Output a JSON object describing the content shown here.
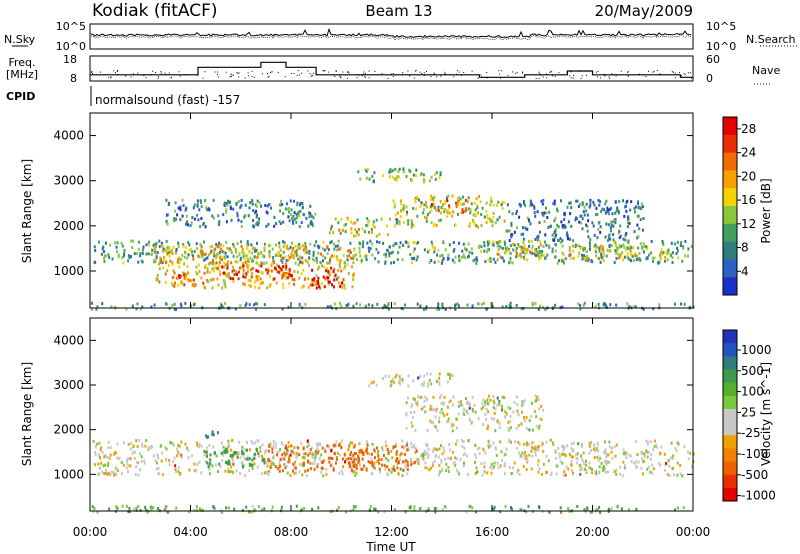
{
  "header": {
    "station": "Kodiak (fitACF)",
    "beam": "Beam 13",
    "date": "20/May/2009"
  },
  "noise_panel": {
    "left_label": "N.Sky",
    "left_ticks": [
      "10^5",
      "10^0"
    ],
    "right_ticks": [
      "10^5",
      "10^0"
    ],
    "right_label": "N.Search"
  },
  "freq_panel": {
    "left_label": "Freq.",
    "left_unit": "[MHz]",
    "left_ticks": [
      "18",
      "8"
    ],
    "right_ticks": [
      "60",
      "0"
    ],
    "right_label": "Nave",
    "frequency_steps": [
      {
        "from": 0,
        "to": 4.3,
        "mhz": 10.5
      },
      {
        "from": 4.3,
        "to": 6.8,
        "mhz": 13.5
      },
      {
        "from": 6.8,
        "to": 7.8,
        "mhz": 15.5
      },
      {
        "from": 7.8,
        "to": 9.0,
        "mhz": 13.5
      },
      {
        "from": 9.0,
        "to": 15.5,
        "mhz": 10.5
      },
      {
        "from": 15.5,
        "to": 17.3,
        "mhz": 9.5
      },
      {
        "from": 17.3,
        "to": 19.0,
        "mhz": 10.5
      },
      {
        "from": 19.0,
        "to": 20.0,
        "mhz": 12.0
      },
      {
        "from": 20.0,
        "to": 23.5,
        "mhz": 10.5
      },
      {
        "from": 23.5,
        "to": 24.0,
        "mhz": 9.5
      }
    ]
  },
  "cpid_row": {
    "label": "CPID",
    "text": "normalsound (fast) -157"
  },
  "chart_data": [
    {
      "type": "heatmap",
      "title": "",
      "xlabel": "Time UT",
      "ylabel": "Slant Range [km]",
      "xlim": [
        0,
        24
      ],
      "ylim": [
        180,
        4500
      ],
      "x_ticks": [
        "00:00",
        "04:00",
        "08:00",
        "12:00",
        "16:00",
        "20:00",
        "00:00"
      ],
      "y_ticks": [
        1000,
        2000,
        3000,
        4000
      ],
      "colorbar": {
        "label": "Power [dB]",
        "ticks": [
          4,
          8,
          12,
          16,
          20,
          24,
          28
        ],
        "range": [
          0,
          30
        ],
        "colors": [
          "#1e2fc8",
          "#2e62c2",
          "#2f7d7d",
          "#3fa060",
          "#8cc63f",
          "#f3d300",
          "#f7a000",
          "#f26a00",
          "#e83000",
          "#e30000"
        ]
      },
      "echo_regions": [
        {
          "t0": 0.1,
          "t1": 24.0,
          "r0": 1200,
          "r1": 1700,
          "level": 10
        },
        {
          "t0": 2.5,
          "t1": 10.5,
          "r0": 650,
          "r1": 1600,
          "level": 18
        },
        {
          "t0": 5.0,
          "t1": 8.0,
          "r0": 850,
          "r1": 1150,
          "level": 27
        },
        {
          "t0": 8.8,
          "t1": 10.0,
          "r0": 650,
          "r1": 1100,
          "level": 29
        },
        {
          "t0": 3.5,
          "t1": 4.6,
          "r0": 650,
          "r1": 950,
          "level": 24
        },
        {
          "t0": 9.5,
          "t1": 12.0,
          "r0": 1800,
          "r1": 2200,
          "level": 16
        },
        {
          "t0": 12.0,
          "t1": 16.5,
          "r0": 2000,
          "r1": 2700,
          "level": 14
        },
        {
          "t0": 13.5,
          "t1": 15.0,
          "r0": 2300,
          "r1": 2600,
          "level": 22
        },
        {
          "t0": 16.0,
          "t1": 18.0,
          "r0": 1300,
          "r1": 1700,
          "level": 16
        },
        {
          "t0": 19.0,
          "t1": 23.0,
          "r0": 1300,
          "r1": 1600,
          "level": 16
        },
        {
          "t0": 10.5,
          "t1": 14.0,
          "r0": 3000,
          "r1": 3300,
          "level": 12
        },
        {
          "t0": 0.0,
          "t1": 24.0,
          "r0": 180,
          "r1": 320,
          "level": 9
        },
        {
          "t0": 16.5,
          "t1": 22.0,
          "r0": 1700,
          "r1": 2600,
          "level": 7
        },
        {
          "t0": 3.0,
          "t1": 9.0,
          "r0": 2000,
          "r1": 2600,
          "level": 7
        }
      ]
    },
    {
      "type": "heatmap",
      "title": "",
      "xlabel": "Time UT",
      "ylabel": "Slant Range [km]",
      "xlim": [
        0,
        24
      ],
      "ylim": [
        180,
        4500
      ],
      "x_ticks": [
        "00:00",
        "04:00",
        "08:00",
        "12:00",
        "16:00",
        "20:00",
        "00:00"
      ],
      "y_ticks": [
        1000,
        2000,
        3000,
        4000
      ],
      "colorbar": {
        "label": "Velocity [m s^-1]",
        "ticks": [
          "1000",
          "500",
          "100",
          "25",
          "-25",
          "-100",
          "-500",
          "-1000"
        ],
        "colors": [
          "#2233bb",
          "#2255bb",
          "#2f7d7d",
          "#3e9a4e",
          "#55b030",
          "#79c83a",
          "#c8c8c8",
          "#c8c8c8",
          "#f0a000",
          "#f08000",
          "#ee6000",
          "#ea3000",
          "#e30000"
        ]
      },
      "echo_regions": [
        {
          "t0": 0.1,
          "t1": 24.0,
          "r0": 1000,
          "r1": 1800,
          "velocity": 0
        },
        {
          "t0": 4.5,
          "t1": 7.0,
          "r0": 1200,
          "r1": 1600,
          "velocity": 150
        },
        {
          "t0": 7.0,
          "t1": 13.0,
          "r0": 1100,
          "r1": 1700,
          "velocity": -250
        },
        {
          "t0": 4.5,
          "t1": 5.2,
          "r0": 1800,
          "r1": 2000,
          "velocity": 600
        },
        {
          "t0": 12.5,
          "t1": 18.0,
          "r0": 2000,
          "r1": 2800,
          "velocity": 0
        },
        {
          "t0": 11.0,
          "t1": 14.5,
          "r0": 3000,
          "r1": 3300,
          "velocity": 0
        },
        {
          "t0": 0.0,
          "t1": 24.0,
          "r0": 180,
          "r1": 320,
          "velocity": 60
        }
      ]
    }
  ]
}
